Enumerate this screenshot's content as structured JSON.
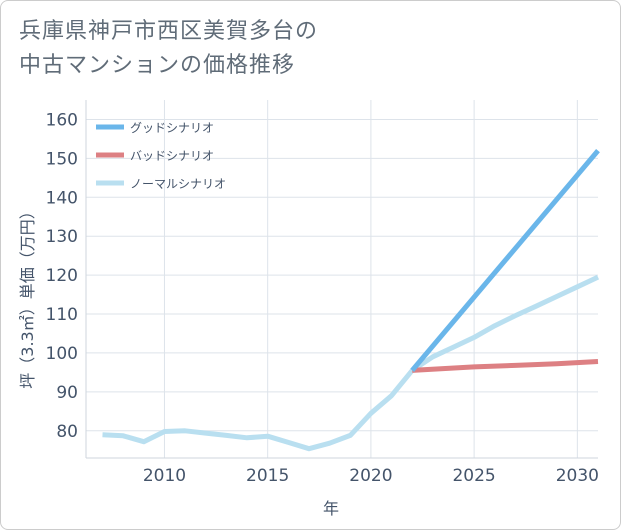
{
  "title_line1": "兵庫県神戸市西区美賀多台の",
  "title_line2": "中古マンションの価格推移",
  "chart_data": {
    "type": "line",
    "xlabel": "年",
    "ylabel": "坪（3.3㎡）単価（万円）",
    "xlim": [
      2006.2,
      2031
    ],
    "ylim": [
      73,
      165
    ],
    "x_ticks": [
      2010,
      2015,
      2020,
      2025,
      2030
    ],
    "y_ticks": [
      80,
      90,
      100,
      110,
      120,
      130,
      140,
      150,
      160
    ],
    "grid": true,
    "legend_position": "top-left",
    "series": [
      {
        "name": "グッドシナリオ",
        "color": "#6ab6ea",
        "x": [
          2022,
          2031
        ],
        "y": [
          95.5,
          152
        ]
      },
      {
        "name": "バッドシナリオ",
        "color": "#dd8083",
        "x": [
          2022,
          2025,
          2027,
          2029,
          2031
        ],
        "y": [
          95.5,
          96.4,
          96.8,
          97.2,
          97.8
        ]
      },
      {
        "name": "ノーマルシナリオ",
        "color": "#b9dff0",
        "x": [
          2007,
          2008,
          2009,
          2010,
          2011,
          2012,
          2013,
          2014,
          2015,
          2016,
          2017,
          2018,
          2019,
          2020,
          2021,
          2022,
          2023,
          2024,
          2025,
          2026,
          2027,
          2028,
          2029,
          2030,
          2031
        ],
        "y": [
          79,
          78.7,
          77.2,
          79.8,
          80,
          79.4,
          78.8,
          78.2,
          78.6,
          77,
          75.4,
          76.8,
          78.8,
          84.5,
          89,
          95.5,
          99,
          101.5,
          104,
          107,
          109.6,
          112,
          114.5,
          117,
          119.5
        ]
      }
    ]
  }
}
